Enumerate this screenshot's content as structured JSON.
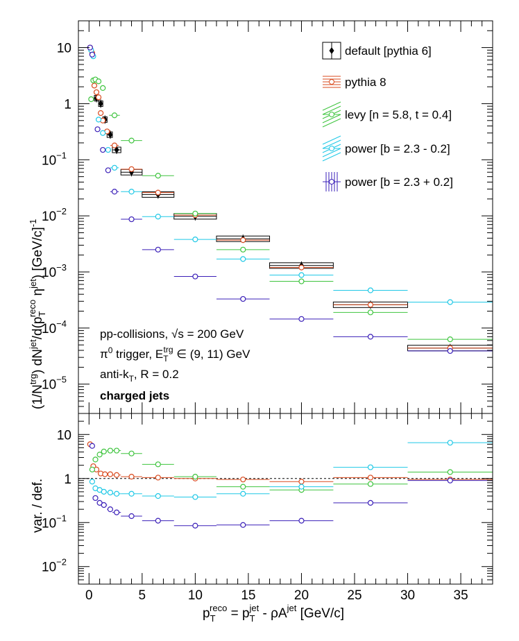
{
  "chart_data": [
    {
      "type": "scatter",
      "panel": "top",
      "ylabel": "(1/N^trg) dN^jet/d(p_T^reco η^jet) [GeV/c]^-1",
      "yscale": "log",
      "ylim": [
        3e-06,
        30
      ],
      "xlim": [
        -1,
        38
      ],
      "yticks": [
        {
          "v": 10,
          "b": "10",
          "e": ""
        },
        {
          "v": 1,
          "b": "1",
          "e": ""
        },
        {
          "v": 0.1,
          "b": "10",
          "e": "−1"
        },
        {
          "v": 0.01,
          "b": "10",
          "e": "−2"
        },
        {
          "v": 0.001,
          "b": "10",
          "e": "−3"
        },
        {
          "v": 0.0001,
          "b": "10",
          "e": "−4"
        },
        {
          "v": 1e-05,
          "b": "10",
          "e": "−5"
        }
      ],
      "legend": [
        "default [pythia 6]",
        "pythia 8",
        "levy [n = 5.8, t = 0.4]",
        "power [b = 2.3 - 0.2]",
        "power [b = 2.3 + 0.2]"
      ],
      "annotations": [
        "pp-collisions, √s = 200 GeV",
        "π⁰ trigger, E_T^trg ∈ (9, 11) GeV",
        "anti-k_T, R = 0.2",
        "charged jets"
      ],
      "series": [
        {
          "name": "default [pythia 6]",
          "color": "#000000",
          "marker": "diamond",
          "box": true,
          "x": [
            0.7,
            1.1,
            1.5,
            2.0,
            2.6,
            4.0,
            6.5,
            10.0,
            14.5,
            20.0,
            26.5,
            34.0
          ],
          "xl": [
            0.5,
            0.9,
            1.3,
            1.7,
            2.2,
            3.0,
            5.0,
            8.0,
            12.0,
            17.0,
            23.0,
            30.0
          ],
          "xh": [
            0.9,
            1.3,
            1.7,
            2.2,
            3.0,
            5.0,
            8.0,
            12.0,
            17.0,
            23.0,
            30.0,
            38.0
          ],
          "y": [
            1.25,
            1.0,
            0.52,
            0.28,
            0.15,
            0.06,
            0.024,
            0.0098,
            0.0039,
            0.0013,
            0.00026,
            4.4e-05
          ]
        },
        {
          "name": "pythia 8",
          "color": "#d94a1e",
          "marker": "circle",
          "x": [
            0.1,
            0.3,
            0.5,
            0.7,
            0.9,
            1.1,
            1.3,
            1.7,
            2.4,
            4.0,
            6.5,
            10.0,
            14.5,
            20.0,
            26.5,
            34.0
          ],
          "xl": [
            0.0,
            0.2,
            0.4,
            0.6,
            0.8,
            1.0,
            1.2,
            1.4,
            2.0,
            3.0,
            5.0,
            8.0,
            12.0,
            17.0,
            23.0,
            30.0
          ],
          "xh": [
            0.2,
            0.4,
            0.6,
            0.8,
            1.0,
            1.2,
            1.4,
            2.0,
            2.8,
            5.0,
            8.0,
            12.0,
            17.0,
            23.0,
            30.0,
            38.0
          ],
          "y": [
            10.0,
            8.0,
            2.1,
            1.6,
            1.3,
            0.68,
            0.5,
            0.32,
            0.18,
            0.068,
            0.026,
            0.0103,
            0.0037,
            0.0012,
            0.00026,
            4.4e-05
          ]
        },
        {
          "name": "levy [n = 5.8, t = 0.4]",
          "color": "#3ec43e",
          "marker": "circle",
          "x": [
            0.2,
            0.4,
            0.6,
            0.9,
            1.3,
            2.4,
            4.0,
            6.5,
            10.0,
            14.5,
            20.0,
            26.5,
            34.0
          ],
          "xl": [
            0.0,
            0.3,
            0.5,
            0.75,
            1.05,
            1.9,
            3.0,
            5.0,
            8.0,
            12.0,
            17.0,
            23.0,
            30.0
          ],
          "xh": [
            0.3,
            0.5,
            0.75,
            1.05,
            1.55,
            2.9,
            5.0,
            8.0,
            12.0,
            17.0,
            23.0,
            30.0,
            38.0
          ],
          "y": [
            1.2,
            2.6,
            2.7,
            2.5,
            1.9,
            0.62,
            0.22,
            0.052,
            0.011,
            0.0025,
            0.00068,
            0.00019,
            6.3e-05
          ]
        },
        {
          "name": "power [b = 2.3 - 0.2]",
          "color": "#1ec8e6",
          "marker": "circle",
          "x": [
            0.2,
            0.4,
            0.9,
            1.3,
            1.8,
            2.4,
            4.0,
            6.5,
            10.0,
            14.5,
            20.0,
            26.5,
            34.0
          ],
          "xl": [
            0.0,
            0.3,
            0.75,
            1.05,
            1.55,
            2.0,
            3.0,
            5.0,
            8.0,
            12.0,
            17.0,
            23.0,
            30.0
          ],
          "xh": [
            0.3,
            0.5,
            1.05,
            1.55,
            2.0,
            2.8,
            5.0,
            8.0,
            12.0,
            17.0,
            23.0,
            30.0,
            38.0
          ],
          "y": [
            9.0,
            7.0,
            0.52,
            0.3,
            0.15,
            0.072,
            0.027,
            0.0097,
            0.0038,
            0.0017,
            0.00088,
            0.00047,
            0.00029
          ]
        },
        {
          "name": "power [b = 2.3 + 0.2]",
          "color": "#3a1fb8",
          "marker": "circle",
          "x": [
            0.1,
            0.3,
            0.8,
            1.3,
            1.8,
            2.4,
            4.0,
            6.5,
            10.0,
            14.5,
            20.0,
            26.5,
            34.0
          ],
          "xl": [
            0.0,
            0.2,
            0.55,
            1.05,
            1.55,
            2.0,
            3.0,
            5.0,
            8.0,
            12.0,
            17.0,
            23.0,
            30.0
          ],
          "xh": [
            0.2,
            0.4,
            1.05,
            1.55,
            2.0,
            2.8,
            5.0,
            8.0,
            12.0,
            17.0,
            23.0,
            30.0,
            38.0
          ],
          "y": [
            10.0,
            7.5,
            0.35,
            0.15,
            0.065,
            0.027,
            0.0087,
            0.0025,
            0.00083,
            0.00033,
            0.000145,
            7e-05,
            3.9e-05
          ]
        }
      ]
    },
    {
      "type": "scatter",
      "panel": "ratio",
      "ylabel": "var. / def.",
      "xlabel": "p_T^reco = p_T^jet - ρA^jet [GeV/c]",
      "yscale": "log",
      "ylim": [
        0.004,
        30
      ],
      "xlim": [
        -1,
        38
      ],
      "yticks": [
        {
          "v": 10,
          "b": "10",
          "e": ""
        },
        {
          "v": 1,
          "b": "1",
          "e": ""
        },
        {
          "v": 0.1,
          "b": "10",
          "e": "−1"
        },
        {
          "v": 0.01,
          "b": "10",
          "e": "−2"
        }
      ],
      "xticks": [
        0,
        5,
        10,
        15,
        20,
        25,
        30,
        35
      ],
      "series": [
        {
          "name": "pythia 8",
          "color": "#d94a1e",
          "x": [
            0.1,
            0.4,
            0.7,
            1.1,
            1.5,
            2.0,
            2.6,
            4.0,
            6.5,
            10.0,
            14.5,
            20.0,
            26.5,
            34.0
          ],
          "xl": [
            0.0,
            0.3,
            0.5,
            0.9,
            1.3,
            1.7,
            2.2,
            3.0,
            5.0,
            8.0,
            12.0,
            17.0,
            23.0,
            30.0
          ],
          "xh": [
            0.2,
            0.5,
            0.9,
            1.3,
            1.7,
            2.2,
            3.0,
            5.0,
            8.0,
            12.0,
            17.0,
            23.0,
            30.0,
            38.0
          ],
          "y": [
            6.0,
            1.9,
            1.6,
            1.3,
            1.25,
            1.25,
            1.2,
            1.1,
            1.05,
            1.0,
            0.95,
            0.85,
            1.05,
            0.95
          ]
        },
        {
          "name": "levy [n = 5.8, t = 0.4]",
          "color": "#3ec43e",
          "x": [
            0.3,
            0.6,
            1.0,
            1.4,
            2.0,
            2.6,
            4.0,
            6.5,
            10.0,
            14.5,
            20.0,
            26.5,
            34.0
          ],
          "xl": [
            0.1,
            0.45,
            0.8,
            1.2,
            1.7,
            2.2,
            3.0,
            5.0,
            8.0,
            12.0,
            17.0,
            23.0,
            30.0
          ],
          "xh": [
            0.45,
            0.8,
            1.2,
            1.7,
            2.2,
            3.0,
            5.0,
            8.0,
            12.0,
            17.0,
            23.0,
            30.0,
            38.0
          ],
          "y": [
            1.6,
            2.7,
            3.5,
            4.1,
            4.3,
            4.3,
            3.7,
            2.1,
            1.1,
            0.65,
            0.55,
            0.75,
            1.4
          ]
        },
        {
          "name": "power [b = 2.3 - 0.2]",
          "color": "#1ec8e6",
          "x": [
            0.3,
            0.6,
            1.0,
            1.4,
            2.0,
            2.6,
            4.0,
            6.5,
            10.0,
            14.5,
            20.0,
            26.5,
            34.0
          ],
          "xl": [
            0.1,
            0.45,
            0.8,
            1.2,
            1.7,
            2.2,
            3.0,
            5.0,
            8.0,
            12.0,
            17.0,
            23.0,
            30.0
          ],
          "xh": [
            0.45,
            0.8,
            1.2,
            1.7,
            2.2,
            3.0,
            5.0,
            8.0,
            12.0,
            17.0,
            23.0,
            30.0,
            38.0
          ],
          "y": [
            0.85,
            0.6,
            0.55,
            0.5,
            0.48,
            0.45,
            0.45,
            0.4,
            0.38,
            0.45,
            0.65,
            1.8,
            6.5
          ]
        },
        {
          "name": "power [b = 2.3 + 0.2]",
          "color": "#3a1fb8",
          "x": [
            0.3,
            0.6,
            1.0,
            1.4,
            2.0,
            2.6,
            4.0,
            6.5,
            10.0,
            14.5,
            20.0,
            26.5,
            34.0
          ],
          "xl": [
            0.1,
            0.45,
            0.8,
            1.2,
            1.7,
            2.2,
            3.0,
            5.0,
            8.0,
            12.0,
            17.0,
            23.0,
            30.0
          ],
          "xh": [
            0.45,
            0.8,
            1.2,
            1.7,
            2.2,
            3.0,
            5.0,
            8.0,
            12.0,
            17.0,
            23.0,
            30.0,
            38.0
          ],
          "y": [
            5.5,
            0.36,
            0.28,
            0.25,
            0.2,
            0.17,
            0.14,
            0.11,
            0.085,
            0.088,
            0.11,
            0.28,
            0.9
          ]
        }
      ]
    }
  ],
  "text": {
    "top_ylabel_prefix": "(1/N",
    "top_ylabel_trg": "trg",
    "top_ylabel_mid": ") dN",
    "top_ylabel_jet": "jet",
    "top_ylabel_d": "/d(p",
    "top_ylabel_T": "T",
    "top_ylabel_reco": "reco",
    "top_ylabel_eta": " η",
    "top_ylabel_jet2": "jet",
    "top_ylabel_unit": ") [GeV/c]",
    "top_ylabel_exp": "-1",
    "ratio_ylabel": "var. / def.",
    "x_p": "p",
    "x_T1": "T",
    "x_reco": "reco",
    "x_eq": " = p",
    "x_T2": "T",
    "x_jet": "jet",
    "x_rho": " - ρA",
    "x_jet2": "jet",
    "x_unit": " [GeV/c]",
    "ann1_a": "pp-collisions, ",
    "ann1_b": "s = 200 GeV",
    "ann2_pi": "π",
    "ann2_0": "0",
    "ann2_mid": " trigger, E",
    "ann2_T": "T",
    "ann2_trg": "trg",
    "ann2_end": " ∈ (9, 11) GeV",
    "ann3_a": "anti-k",
    "ann3_T": "T",
    "ann3_b": ", R = 0.2",
    "ann4": "charged jets"
  }
}
